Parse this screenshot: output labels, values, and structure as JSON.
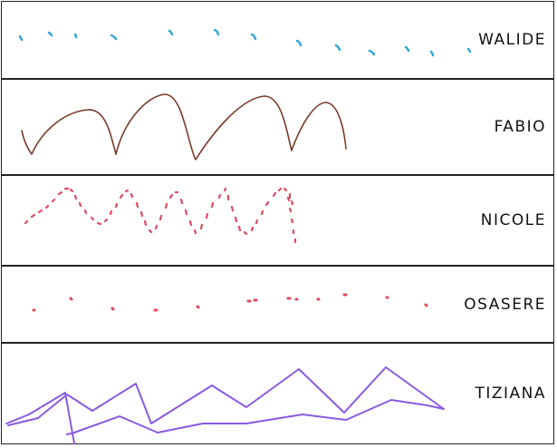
{
  "panels": [
    {
      "name": "WALIDE",
      "stroke": "#2fa8d6"
    },
    {
      "name": "FABIO",
      "stroke": "#7a3b2a"
    },
    {
      "name": "NICOLE",
      "stroke": "#e0485e"
    },
    {
      "name": "OSASERE",
      "stroke": "#e0485e"
    },
    {
      "name": "TIZIANA",
      "stroke": "#8a5ae0"
    }
  ]
}
